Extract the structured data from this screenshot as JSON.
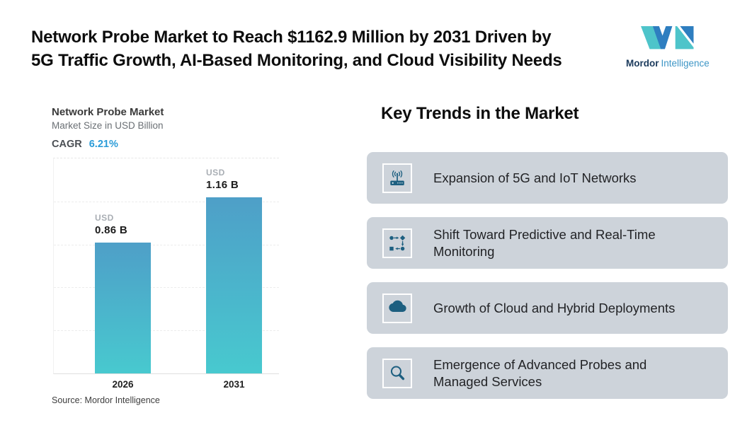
{
  "page": {
    "title": "Network Probe Market to Reach $1162.9 Million by 2031 Driven by\n5G Traffic Growth, AI-Based Monitoring, and Cloud Visibility Needs"
  },
  "logo": {
    "brand_bold": "Mordor",
    "brand_light": "Intelligence"
  },
  "chart": {
    "title": "Network Probe Market",
    "subtitle": "Market Size in USD Billion",
    "cagr_label": "CAGR",
    "cagr_value": "6.21%",
    "source": "Source: Mordor Intelligence"
  },
  "chart_data": {
    "type": "bar",
    "title": "Network Probe Market",
    "ylabel": "Market Size in USD Billion",
    "cagr": "6.21%",
    "categories": [
      "2026",
      "2031"
    ],
    "values": [
      0.86,
      1.16
    ],
    "unit": "USD Billion",
    "bar_labels": [
      {
        "prefix": "USD",
        "value": "0.86 B"
      },
      {
        "prefix": "USD",
        "value": "1.16 B"
      }
    ],
    "ylim": [
      0,
      1.42
    ],
    "gridlines": "horizontal-dashed",
    "legend": "none",
    "source": "Source: Mordor Intelligence"
  },
  "trends": {
    "heading": "Key Trends in the Market",
    "items": [
      {
        "icon": "router-wifi-icon",
        "text": "Expansion of 5G and IoT Networks"
      },
      {
        "icon": "workflow-icon",
        "text": "Shift Toward Predictive and Real-Time\nMonitoring"
      },
      {
        "icon": "cloud-icon",
        "text": "Growth of Cloud and Hybrid Deployments"
      },
      {
        "icon": "magnifier-icon",
        "text": "Emergence of Advanced Probes and\nManaged Services"
      }
    ]
  },
  "colors": {
    "accent_blue": "#2B9CD8",
    "bar_gradient_top": "#4E9FC8",
    "bar_gradient_bottom": "#48C9CF",
    "card_background": "#CDD3DA",
    "icon_blue": "#1D5F80",
    "logo_teal": "#4EC4CA",
    "logo_blue": "#2E7EC0",
    "logo_navy": "#1B3A5C",
    "logo_text_blue": "#3E96C6"
  }
}
